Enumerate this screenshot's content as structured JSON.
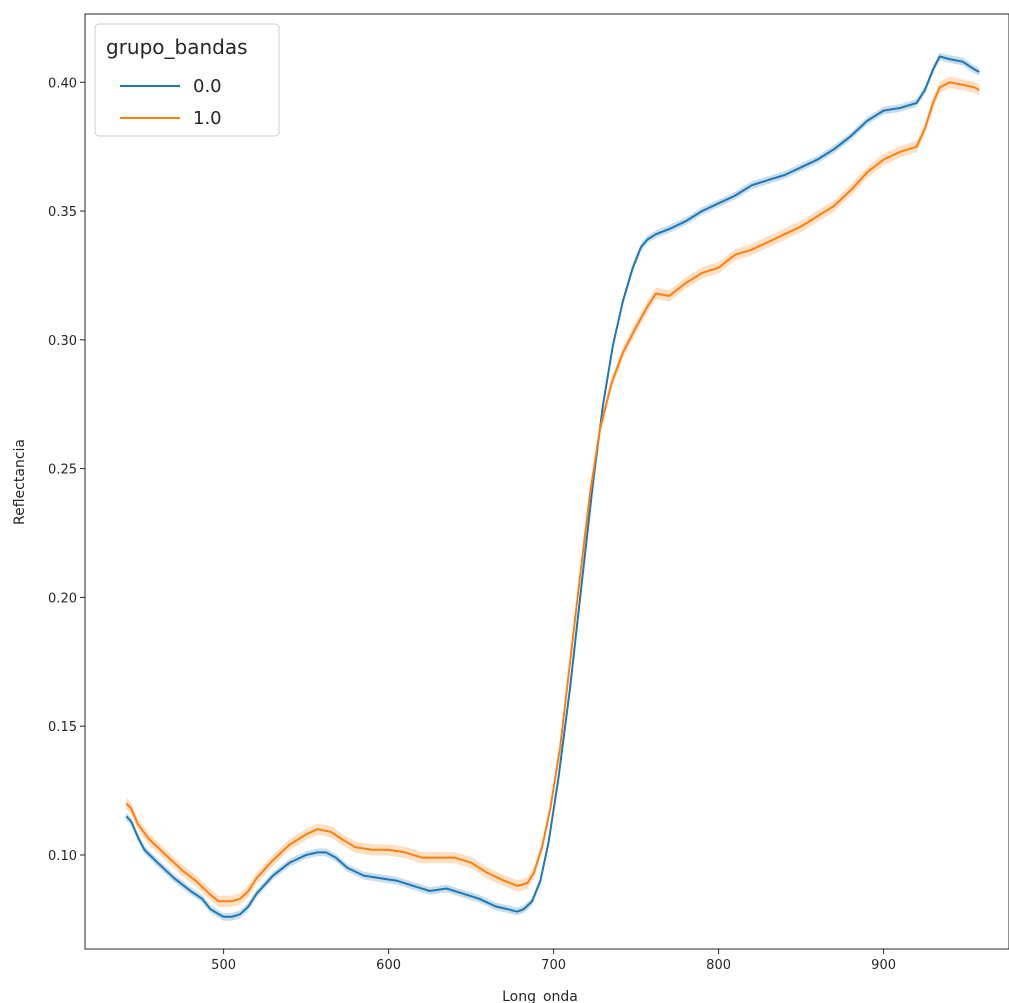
{
  "chart_data": {
    "type": "line",
    "title": "",
    "xlabel": "Long_onda",
    "ylabel": "Reflectancia",
    "xlim": [
      416,
      976
    ],
    "ylim": [
      0.0635,
      0.4265
    ],
    "x_ticks": [
      500,
      600,
      700,
      800,
      900
    ],
    "x_tick_labels": [
      "500",
      "600",
      "700",
      "800",
      "900"
    ],
    "y_ticks": [
      0.1,
      0.15,
      0.2,
      0.25,
      0.3,
      0.35,
      0.4
    ],
    "y_tick_labels": [
      "0.10",
      "0.15",
      "0.20",
      "0.25",
      "0.30",
      "0.35",
      "0.40"
    ],
    "grid": false,
    "legend": {
      "title": "grupo_bandas",
      "placement": "upper-left"
    },
    "series": [
      {
        "name": "0.0",
        "color": "#1f77b4",
        "band": 0.0015,
        "points": [
          [
            441,
            0.115
          ],
          [
            444,
            0.113
          ],
          [
            448,
            0.107
          ],
          [
            452,
            0.102
          ],
          [
            460,
            0.097
          ],
          [
            470,
            0.091
          ],
          [
            480,
            0.086
          ],
          [
            487,
            0.083
          ],
          [
            492,
            0.079
          ],
          [
            497,
            0.077
          ],
          [
            500,
            0.076
          ],
          [
            505,
            0.076
          ],
          [
            510,
            0.077
          ],
          [
            515,
            0.08
          ],
          [
            520,
            0.085
          ],
          [
            530,
            0.092
          ],
          [
            540,
            0.097
          ],
          [
            550,
            0.1
          ],
          [
            557,
            0.101
          ],
          [
            562,
            0.101
          ],
          [
            568,
            0.099
          ],
          [
            575,
            0.095
          ],
          [
            585,
            0.092
          ],
          [
            595,
            0.091
          ],
          [
            605,
            0.09
          ],
          [
            615,
            0.088
          ],
          [
            625,
            0.086
          ],
          [
            635,
            0.087
          ],
          [
            645,
            0.085
          ],
          [
            655,
            0.083
          ],
          [
            665,
            0.08
          ],
          [
            672,
            0.079
          ],
          [
            678,
            0.078
          ],
          [
            682,
            0.079
          ],
          [
            687,
            0.082
          ],
          [
            692,
            0.09
          ],
          [
            697,
            0.105
          ],
          [
            703,
            0.13
          ],
          [
            710,
            0.165
          ],
          [
            717,
            0.205
          ],
          [
            724,
            0.245
          ],
          [
            730,
            0.275
          ],
          [
            736,
            0.298
          ],
          [
            742,
            0.315
          ],
          [
            748,
            0.328
          ],
          [
            753,
            0.336
          ],
          [
            757,
            0.339
          ],
          [
            762,
            0.341
          ],
          [
            770,
            0.343
          ],
          [
            780,
            0.346
          ],
          [
            790,
            0.35
          ],
          [
            800,
            0.353
          ],
          [
            810,
            0.356
          ],
          [
            820,
            0.36
          ],
          [
            830,
            0.362
          ],
          [
            840,
            0.364
          ],
          [
            850,
            0.367
          ],
          [
            860,
            0.37
          ],
          [
            870,
            0.374
          ],
          [
            880,
            0.379
          ],
          [
            890,
            0.385
          ],
          [
            900,
            0.389
          ],
          [
            910,
            0.39
          ],
          [
            920,
            0.392
          ],
          [
            925,
            0.397
          ],
          [
            930,
            0.405
          ],
          [
            934,
            0.41
          ],
          [
            940,
            0.409
          ],
          [
            948,
            0.408
          ],
          [
            955,
            0.405
          ],
          [
            958,
            0.404
          ]
        ]
      },
      {
        "name": "1.0",
        "color": "#ff7f0e",
        "band": 0.0022,
        "points": [
          [
            441,
            0.12
          ],
          [
            444,
            0.118
          ],
          [
            448,
            0.112
          ],
          [
            455,
            0.106
          ],
          [
            465,
            0.1
          ],
          [
            475,
            0.094
          ],
          [
            483,
            0.09
          ],
          [
            488,
            0.087
          ],
          [
            493,
            0.084
          ],
          [
            497,
            0.082
          ],
          [
            500,
            0.082
          ],
          [
            505,
            0.082
          ],
          [
            510,
            0.083
          ],
          [
            515,
            0.086
          ],
          [
            520,
            0.091
          ],
          [
            530,
            0.098
          ],
          [
            540,
            0.104
          ],
          [
            550,
            0.108
          ],
          [
            557,
            0.11
          ],
          [
            565,
            0.109
          ],
          [
            572,
            0.106
          ],
          [
            580,
            0.103
          ],
          [
            590,
            0.102
          ],
          [
            600,
            0.102
          ],
          [
            610,
            0.101
          ],
          [
            620,
            0.099
          ],
          [
            630,
            0.099
          ],
          [
            640,
            0.099
          ],
          [
            650,
            0.097
          ],
          [
            660,
            0.093
          ],
          [
            670,
            0.09
          ],
          [
            678,
            0.088
          ],
          [
            684,
            0.089
          ],
          [
            688,
            0.093
          ],
          [
            693,
            0.103
          ],
          [
            698,
            0.118
          ],
          [
            704,
            0.142
          ],
          [
            710,
            0.175
          ],
          [
            716,
            0.208
          ],
          [
            722,
            0.24
          ],
          [
            728,
            0.265
          ],
          [
            735,
            0.283
          ],
          [
            742,
            0.295
          ],
          [
            750,
            0.305
          ],
          [
            757,
            0.313
          ],
          [
            762,
            0.318
          ],
          [
            770,
            0.317
          ],
          [
            780,
            0.322
          ],
          [
            790,
            0.326
          ],
          [
            800,
            0.328
          ],
          [
            810,
            0.333
          ],
          [
            820,
            0.335
          ],
          [
            830,
            0.338
          ],
          [
            840,
            0.341
          ],
          [
            850,
            0.344
          ],
          [
            860,
            0.348
          ],
          [
            870,
            0.352
          ],
          [
            880,
            0.358
          ],
          [
            890,
            0.365
          ],
          [
            900,
            0.37
          ],
          [
            910,
            0.373
          ],
          [
            920,
            0.375
          ],
          [
            925,
            0.382
          ],
          [
            930,
            0.392
          ],
          [
            934,
            0.398
          ],
          [
            940,
            0.4
          ],
          [
            948,
            0.399
          ],
          [
            955,
            0.398
          ],
          [
            958,
            0.397
          ]
        ]
      }
    ]
  }
}
